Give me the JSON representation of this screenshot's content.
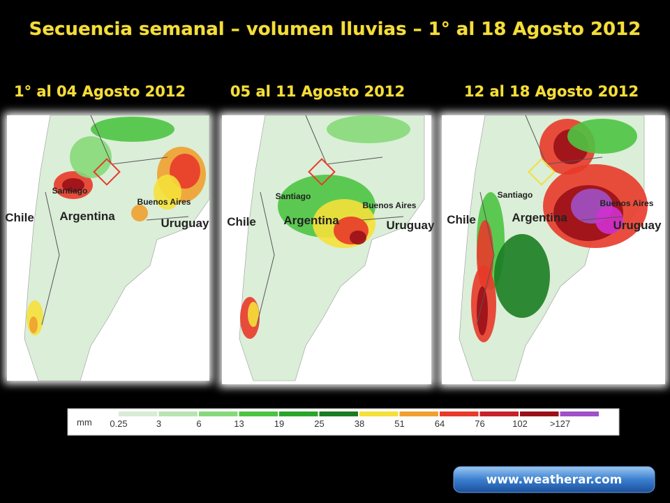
{
  "title": "Secuencia semanal – volumen lluvias – 1° al 18 Agosto 2012",
  "panels": [
    {
      "label": "1° al 04 Agosto 2012",
      "places": {
        "santiago": "Santiago",
        "chile": "Chile",
        "argentina": "Argentina",
        "uruguay": "Uruguay",
        "buenos_aires": "Buenos Aires"
      }
    },
    {
      "label": "05 al 11 Agosto 2012",
      "places": {
        "santiago": "Santiago",
        "chile": "Chile",
        "argentina": "Argentina",
        "uruguay": "Uruguay",
        "buenos_aires": "Buenos Aires"
      }
    },
    {
      "label": "12 al 18 Agosto 2012",
      "places": {
        "santiago": "Santiago",
        "chile": "Chile",
        "argentina": "Argentina",
        "uruguay": "Uruguay",
        "buenos_aires": "Buenos Aires"
      }
    }
  ],
  "legend": {
    "unit": "mm",
    "entries": [
      {
        "label": "0.25",
        "color": "#d9ecd6"
      },
      {
        "label": "3",
        "color": "#b9e3b3"
      },
      {
        "label": "6",
        "color": "#86d97a"
      },
      {
        "label": "13",
        "color": "#4cc442"
      },
      {
        "label": "19",
        "color": "#2aa52c"
      },
      {
        "label": "25",
        "color": "#1b7d22"
      },
      {
        "label": "38",
        "color": "#f5e03a"
      },
      {
        "label": "51",
        "color": "#f0a030"
      },
      {
        "label": "64",
        "color": "#e83a2a"
      },
      {
        "label": "76",
        "color": "#c8202a"
      },
      {
        "label": "102",
        "color": "#9a1018"
      },
      {
        "label": ">127",
        "color": "#a050c8"
      }
    ]
  },
  "link": "www.weatherar.com"
}
